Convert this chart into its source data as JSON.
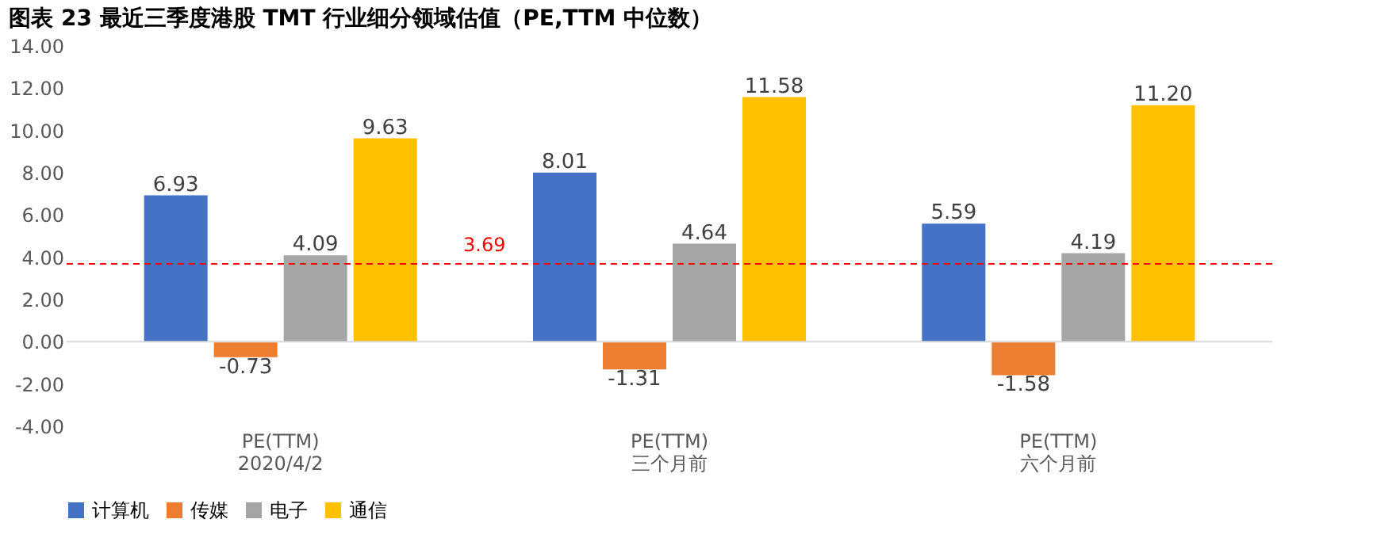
{
  "chart_data": {
    "type": "bar",
    "title": "图表 23 最近三季度港股 TMT 行业细分领域估值（PE,TTM 中位数）",
    "categories": [
      "PE(TTM)\n2020/4/2",
      "PE(TTM)\n三个月前",
      "PE(TTM)\n六个月前"
    ],
    "series": [
      {
        "name": "计算机",
        "color": "#4472c4",
        "values": [
          6.93,
          8.01,
          5.59
        ],
        "value_labels": [
          "6.93",
          "8.01",
          "5.59"
        ]
      },
      {
        "name": "传媒",
        "color": "#ed7d31",
        "values": [
          -0.73,
          -1.31,
          -1.58
        ],
        "value_labels": [
          "-0.73",
          "-1.31",
          "-1.58"
        ]
      },
      {
        "name": "电子",
        "color": "#a5a5a5",
        "values": [
          4.09,
          4.64,
          4.19
        ],
        "value_labels": [
          "4.09",
          "4.64",
          "4.19"
        ]
      },
      {
        "name": "通信",
        "color": "#ffc000",
        "values": [
          9.63,
          11.58,
          11.2
        ],
        "value_labels": [
          "9.63",
          "11.58",
          "11.20"
        ]
      }
    ],
    "ylim": [
      -4,
      14
    ],
    "yticks": [
      {
        "value": -4,
        "label": "-4.00"
      },
      {
        "value": -2,
        "label": "-2.00"
      },
      {
        "value": 0,
        "label": "0.00"
      },
      {
        "value": 2,
        "label": "2.00"
      },
      {
        "value": 4,
        "label": "4.00"
      },
      {
        "value": 6,
        "label": "6.00"
      },
      {
        "value": 8,
        "label": "8.00"
      },
      {
        "value": 10,
        "label": "10.00"
      },
      {
        "value": 12,
        "label": "12.00"
      },
      {
        "value": 14,
        "label": "14.00"
      }
    ],
    "ref_lines": [
      {
        "axis": "y",
        "value": 3.69,
        "label": "3.69",
        "color": "#ff0000",
        "line_style": "dashed"
      }
    ],
    "data_labels": true,
    "grid": false,
    "legend": "bottom"
  }
}
